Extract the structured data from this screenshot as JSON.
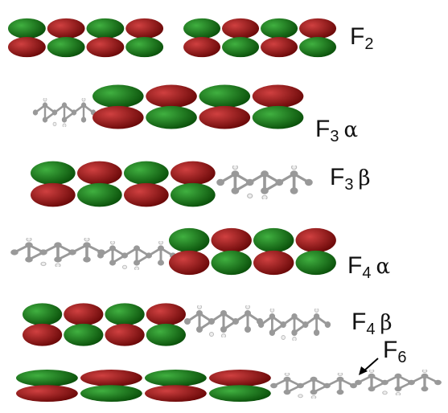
{
  "labels": [
    {
      "main": "F",
      "sub": "2"
    },
    {
      "main": "F",
      "sub": "3",
      "suffix": "α"
    },
    {
      "main": "F",
      "sub": "3",
      "suffix": "β"
    },
    {
      "main": "F",
      "sub": "4",
      "suffix": "α"
    },
    {
      "main": "F",
      "sub": "4",
      "suffix": "β"
    },
    {
      "main": "F",
      "sub": "6"
    }
  ]
}
